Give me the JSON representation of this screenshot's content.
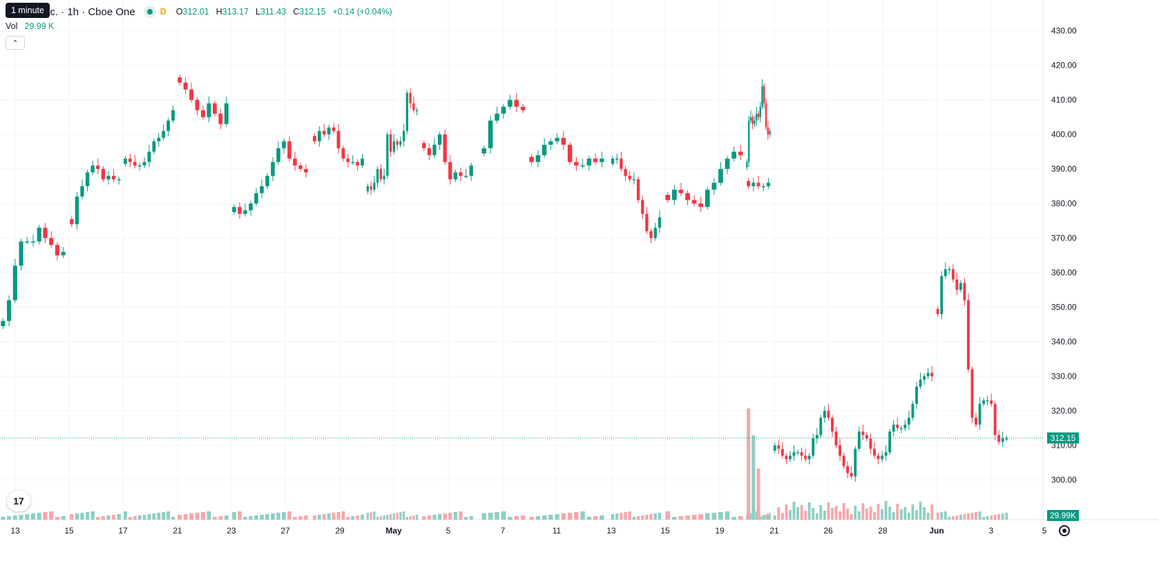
{
  "header": {
    "tooltip": "1 minute",
    "symbol": "nc. · 1h · Cboe One",
    "d_label": "D",
    "ohlc": [
      {
        "k": "O",
        "v": "312.01"
      },
      {
        "k": "H",
        "v": "313.17"
      },
      {
        "k": "L",
        "v": "311.43"
      },
      {
        "k": "C",
        "v": "312.15"
      }
    ],
    "change": "+0.14 (+0.04%)",
    "vol_label": "Vol",
    "vol_value": "29.99 K"
  },
  "colors": {
    "up": "#089981",
    "down": "#f23645",
    "vol_up": "#8dcfc4",
    "vol_down": "#f7a7ac",
    "grid": "#f0f3fa",
    "axis_text": "#131722"
  },
  "icons": {
    "collapse": "chevron-up-icon",
    "logo": "tradingview-logo-icon",
    "settings": "gear-icon"
  },
  "chart_data": {
    "type": "candlestick",
    "x_tick_labels": [
      "13",
      "15",
      "17",
      "21",
      "23",
      "27",
      "29",
      "May",
      "5",
      "7",
      "11",
      "13",
      "15",
      "19",
      "21",
      "26",
      "28",
      "Jun",
      "3",
      "5"
    ],
    "y_ticks": [
      300,
      310,
      320,
      330,
      340,
      350,
      360,
      370,
      380,
      390,
      400,
      410,
      420,
      430
    ],
    "y_tick_labels": [
      "300.00",
      "310.00",
      "320.00",
      "330.00",
      "340.00",
      "350.00",
      "360.00",
      "370.00",
      "380.00",
      "390.00",
      "400.00",
      "410.00",
      "420.00",
      "430.00"
    ],
    "ylim": [
      294,
      434
    ],
    "last_price": 312.15,
    "last_price_label": "312.15",
    "last_volume_label": "29.99K",
    "segments": [
      {
        "from": "13",
        "to": "15",
        "points": [
          346,
          352,
          362,
          369,
          369,
          369,
          373,
          370,
          368,
          365,
          366
        ]
      },
      {
        "from": "15",
        "to": "17",
        "points": [
          374,
          382,
          385,
          389,
          391,
          390,
          387,
          388,
          387,
          387
        ]
      },
      {
        "from": "17",
        "to": "21",
        "points": [
          393,
          392,
          391,
          391,
          392,
          395,
          398,
          399,
          401,
          404,
          407
        ]
      },
      {
        "from": "21",
        "to": "23",
        "points": [
          415,
          413,
          410,
          407,
          405,
          409,
          406,
          403,
          409
        ]
      },
      {
        "from": "23",
        "to": "27",
        "points": [
          379,
          377,
          378,
          380,
          383,
          385,
          388,
          392,
          396,
          398,
          393,
          391,
          390,
          389
        ]
      },
      {
        "from": "27",
        "to": "29",
        "points": [
          398,
          401,
          400,
          402,
          401,
          396,
          393,
          392,
          392,
          391,
          393
        ]
      },
      {
        "from": "29",
        "to": "May",
        "points": [
          385,
          384,
          386,
          390,
          387,
          388,
          400,
          395,
          398,
          397,
          398,
          401,
          412,
          409,
          407,
          407
        ]
      },
      {
        "from": "May",
        "to": "5",
        "points": [
          396,
          394,
          397,
          400,
          392,
          387,
          389,
          388,
          388,
          391
        ]
      },
      {
        "from": "5",
        "to": "7",
        "points": [
          396,
          404,
          406,
          408,
          410,
          408,
          407
        ]
      },
      {
        "from": "7",
        "to": "11",
        "points": [
          392,
          394,
          397,
          398,
          399,
          397,
          392,
          391,
          391,
          393,
          392,
          393
        ]
      },
      {
        "from": "11",
        "to": "13",
        "points": [
          393,
          393,
          390,
          388,
          387,
          387,
          381,
          377,
          372,
          370,
          373,
          376
        ]
      },
      {
        "from": "13",
        "to": "15",
        "points": [
          381,
          384,
          383,
          381,
          380,
          379,
          384,
          386,
          390,
          393,
          395,
          394
        ]
      },
      {
        "from": "15",
        "to": "19",
        "points": [
          392,
          404,
          405,
          403,
          404,
          406,
          405,
          408,
          414,
          409,
          402,
          400,
          401
        ]
      },
      {
        "from": "19",
        "to": "21",
        "points": [
          385,
          386,
          385,
          385,
          386
        ]
      },
      {
        "from": "21",
        "to": "26",
        "points": [
          310,
          309,
          307,
          306,
          307,
          308,
          308,
          307,
          306,
          307,
          312,
          313,
          318,
          320,
          318,
          314,
          310,
          307,
          304,
          302,
          301,
          309,
          314,
          313,
          312,
          309,
          307,
          306,
          307,
          308,
          314,
          316,
          315,
          315,
          316,
          318,
          322,
          327,
          329,
          330,
          331,
          330
        ]
      },
      {
        "from": "Jun",
        "to": "3",
        "points": [
          348,
          359,
          361,
          361,
          358,
          355,
          357,
          352,
          332,
          318,
          316,
          322,
          323,
          323,
          322,
          313,
          311,
          312,
          312
        ]
      }
    ]
  }
}
